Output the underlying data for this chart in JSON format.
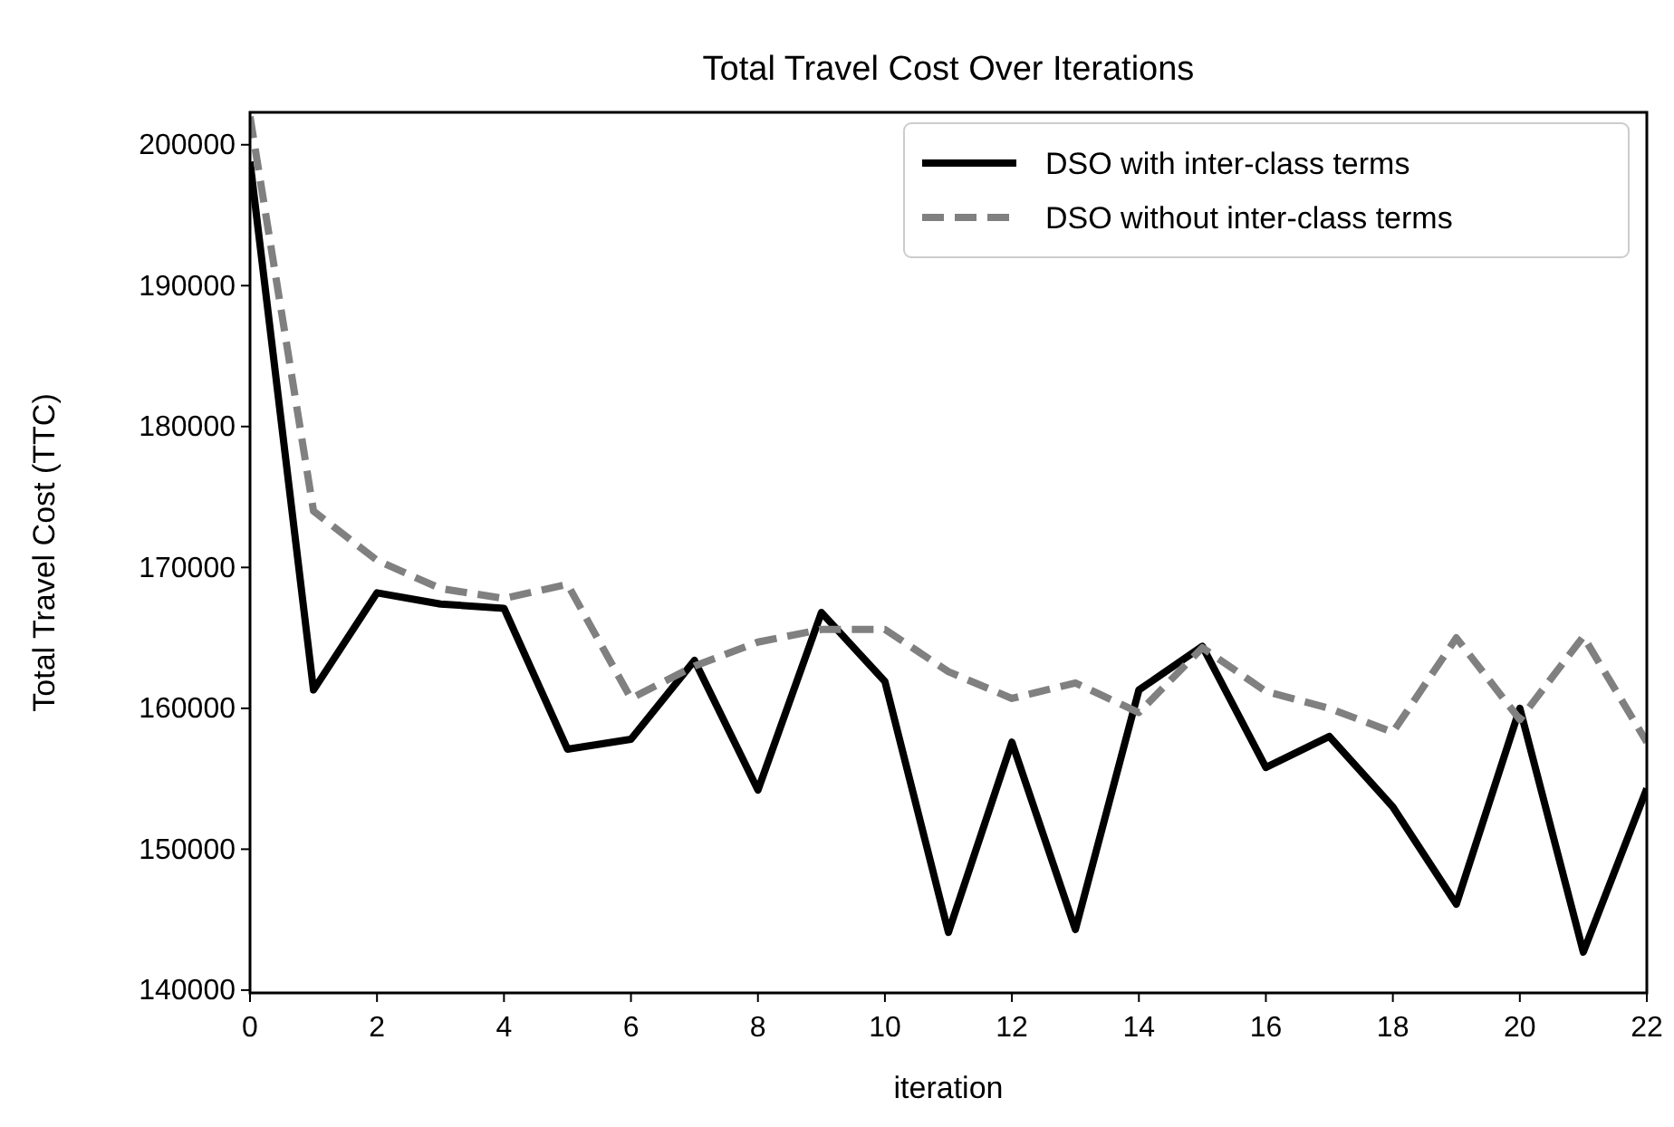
{
  "chart_data": {
    "type": "line",
    "title": "Total Travel Cost Over Iterations",
    "xlabel": "iteration",
    "ylabel": "Total Travel Cost (TTC)",
    "x": [
      0,
      1,
      2,
      3,
      4,
      5,
      6,
      7,
      8,
      9,
      10,
      11,
      12,
      13,
      14,
      15,
      16,
      17,
      18,
      19,
      20,
      21,
      22
    ],
    "series": [
      {
        "name": "DSO with inter-class terms",
        "color": "#000000",
        "line_style": "solid",
        "values": [
          198800,
          161300,
          168200,
          167400,
          167100,
          157100,
          157800,
          163400,
          154200,
          166800,
          161900,
          144100,
          157600,
          144300,
          161300,
          164400,
          155800,
          158000,
          153000,
          146100,
          160000,
          142700,
          154300
        ]
      },
      {
        "name": "DSO without inter-class terms",
        "color": "#808080",
        "line_style": "dashed",
        "values": [
          202000,
          174000,
          170500,
          168500,
          167800,
          168800,
          160700,
          163000,
          164700,
          165600,
          165600,
          162600,
          160700,
          161800,
          159700,
          164300,
          161200,
          160000,
          158300,
          165000,
          159200,
          165100,
          157600
        ]
      }
    ],
    "xlim": [
      0,
      22
    ],
    "xticks": [
      0,
      2,
      4,
      6,
      8,
      10,
      12,
      14,
      16,
      18,
      20,
      22
    ],
    "ylim": [
      139800,
      202300
    ],
    "yticks": [
      140000,
      150000,
      160000,
      170000,
      180000,
      190000,
      200000
    ],
    "grid": false,
    "legend": "top right",
    "marker": "none"
  }
}
